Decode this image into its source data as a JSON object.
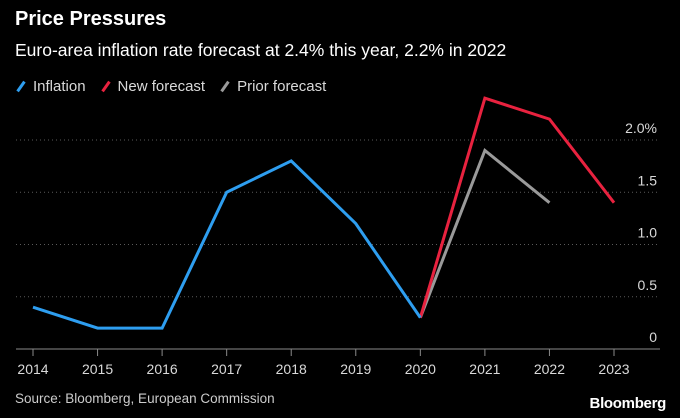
{
  "header": {
    "title": "Price Pressures",
    "subtitle": "Euro-area inflation rate forecast at 2.4% this year, 2.2% in 2022"
  },
  "legend": [
    {
      "label": "Inflation",
      "color": "#2e9ef0"
    },
    {
      "label": "New forecast",
      "color": "#e8223f"
    },
    {
      "label": "Prior forecast",
      "color": "#9a9a9a"
    }
  ],
  "footer": {
    "source": "Source: Bloomberg, European Commission",
    "brand": "Bloomberg"
  },
  "chart_data": {
    "type": "line",
    "title": "Price Pressures",
    "subtitle": "Euro-area inflation rate forecast at 2.4% this year, 2.2% in 2022",
    "xlabel": "",
    "ylabel": "",
    "x": [
      "2014",
      "2015",
      "2016",
      "2017",
      "2018",
      "2019",
      "2020",
      "2021",
      "2022",
      "2023"
    ],
    "ylim": [
      0,
      2.0
    ],
    "yticks": [
      0,
      0.5,
      1.0,
      1.5,
      2.0
    ],
    "ytick_labels": [
      "0",
      "0.5",
      "1.0",
      "1.5",
      "2.0%"
    ],
    "grid": true,
    "legend_position": "top-left",
    "series": [
      {
        "name": "Inflation",
        "color": "#2e9ef0",
        "x": [
          "2014",
          "2015",
          "2016",
          "2017",
          "2018",
          "2019",
          "2020"
        ],
        "values": [
          0.4,
          0.2,
          0.2,
          1.5,
          1.8,
          1.2,
          0.3
        ]
      },
      {
        "name": "New forecast",
        "color": "#e8223f",
        "x": [
          "2020",
          "2021",
          "2022",
          "2023"
        ],
        "values": [
          0.3,
          2.4,
          2.2,
          1.4
        ]
      },
      {
        "name": "Prior forecast",
        "color": "#9a9a9a",
        "x": [
          "2020",
          "2021",
          "2022"
        ],
        "values": [
          0.3,
          1.9,
          1.4
        ]
      }
    ]
  }
}
